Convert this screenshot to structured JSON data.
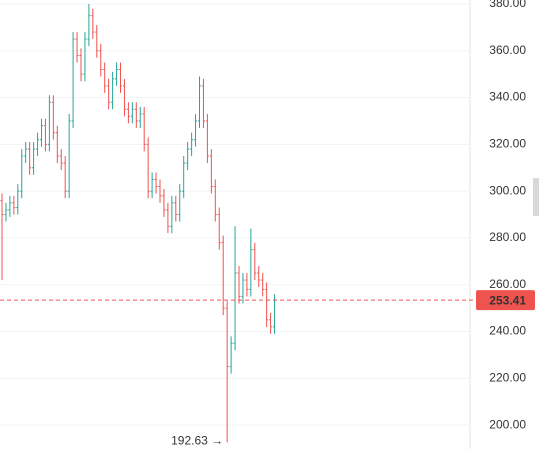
{
  "chart_data": {
    "type": "ohlc",
    "open": [
      296,
      290,
      292,
      295,
      293,
      300,
      315,
      318,
      310,
      318,
      322,
      328,
      320,
      338,
      325,
      315,
      312,
      300,
      330,
      365,
      358,
      350,
      365,
      375,
      368,
      360,
      352,
      345,
      338,
      348,
      352,
      345,
      335,
      332,
      335,
      330,
      333,
      320,
      300,
      305,
      302,
      298,
      292,
      285,
      295,
      290,
      300,
      312,
      318,
      322,
      330,
      345,
      330,
      315,
      302,
      290,
      278,
      250,
      225,
      235,
      265,
      255,
      262,
      258,
      275,
      265,
      262,
      258,
      245,
      242
    ],
    "high": [
      299,
      295,
      298,
      298,
      303,
      318,
      321,
      321,
      321,
      325,
      331,
      331,
      341,
      341,
      328,
      318,
      315,
      333,
      368,
      368,
      361,
      368,
      380,
      378,
      371,
      363,
      355,
      348,
      351,
      355,
      355,
      348,
      338,
      338,
      338,
      336,
      336,
      323,
      308,
      308,
      305,
      301,
      295,
      298,
      298,
      303,
      315,
      321,
      325,
      333,
      349,
      348,
      333,
      318,
      305,
      293,
      281,
      253,
      238,
      285,
      268,
      265,
      265,
      284,
      278,
      268,
      265,
      261,
      248,
      256
    ],
    "low": [
      262,
      287,
      289,
      290,
      290,
      297,
      312,
      307,
      307,
      315,
      319,
      317,
      317,
      322,
      312,
      309,
      297,
      297,
      327,
      355,
      347,
      347,
      362,
      365,
      357,
      349,
      342,
      335,
      335,
      345,
      342,
      332,
      329,
      329,
      327,
      327,
      317,
      297,
      297,
      299,
      295,
      289,
      282,
      282,
      287,
      287,
      297,
      309,
      315,
      319,
      327,
      327,
      312,
      299,
      287,
      275,
      247,
      192.63,
      222,
      232,
      252,
      252,
      255,
      255,
      262,
      259,
      255,
      242,
      239,
      239
    ],
    "close": [
      290,
      292,
      295,
      293,
      300,
      315,
      318,
      310,
      318,
      322,
      328,
      320,
      338,
      325,
      315,
      312,
      300,
      330,
      365,
      358,
      350,
      365,
      375,
      368,
      360,
      352,
      345,
      338,
      348,
      352,
      345,
      335,
      332,
      335,
      330,
      333,
      320,
      300,
      305,
      302,
      298,
      292,
      285,
      295,
      290,
      300,
      312,
      318,
      322,
      330,
      345,
      330,
      315,
      302,
      290,
      278,
      250,
      225,
      235,
      265,
      255,
      262,
      258,
      275,
      265,
      262,
      258,
      245,
      242,
      253.41
    ],
    "up_color": "#26a69a",
    "down_color": "#ef5350",
    "annotation": "192.63 →",
    "ylim": [
      189.8,
      381.7
    ],
    "yticks": [
      {
        "value": 200,
        "label": "200.00"
      },
      {
        "value": 220,
        "label": "220.00"
      },
      {
        "value": 240,
        "label": "240.00"
      },
      {
        "value": 260,
        "label": "260.00"
      },
      {
        "value": 280,
        "label": "280.00"
      },
      {
        "value": 300,
        "label": "300.00"
      },
      {
        "value": 320,
        "label": "320.00"
      },
      {
        "value": 340,
        "label": "340.00"
      },
      {
        "value": 360,
        "label": "360.00"
      },
      {
        "value": 380,
        "label": "380.00"
      }
    ],
    "grid": true
  }
}
